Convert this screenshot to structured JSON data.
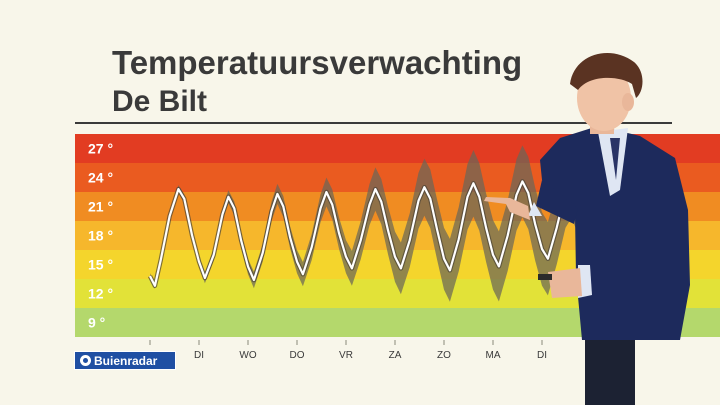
{
  "title": "Temperatuursverwachting",
  "subtitle": "De Bilt",
  "logo": {
    "text": "Buienradar"
  },
  "colors": {
    "band_27": "#e23c22",
    "band_24": "#ea5b20",
    "band_21": "#f08c22",
    "band_18": "#f6b72c",
    "band_15": "#f4d52c",
    "band_12": "#e2e238",
    "band_9": "#b4d86c",
    "line": "#ffffff",
    "uncertainty": "#6b6658",
    "title": "#3a3a3a",
    "logo": "#1f4fa3"
  },
  "chart_data": {
    "type": "line",
    "title": "Temperatuursverwachting",
    "subtitle": "De Bilt",
    "y_ticks": [
      "27 °",
      "24 °",
      "21 °",
      "18 °",
      "15 °",
      "12 °",
      "9 °"
    ],
    "y_tick_values": [
      27,
      24,
      21,
      18,
      15,
      12,
      9
    ],
    "ylim": [
      7.5,
      28.5
    ],
    "x_ticks": [
      "DI",
      "WO",
      "DO",
      "VR",
      "ZA",
      "ZO",
      "MA",
      "DI"
    ],
    "x_range_days": [
      0,
      8.8
    ],
    "grid": false,
    "series": [
      {
        "role": "forecast",
        "points": [
          [
            0.0,
            13.8
          ],
          [
            0.1,
            12.8
          ],
          [
            0.22,
            15.5
          ],
          [
            0.4,
            20.0
          ],
          [
            0.58,
            22.8
          ],
          [
            0.7,
            21.8
          ],
          [
            0.86,
            18.0
          ],
          [
            1.0,
            15.3
          ],
          [
            1.12,
            13.6
          ],
          [
            1.3,
            16.0
          ],
          [
            1.48,
            20.2
          ],
          [
            1.6,
            22.0
          ],
          [
            1.72,
            20.8
          ],
          [
            1.86,
            17.5
          ],
          [
            2.0,
            14.8
          ],
          [
            2.12,
            13.4
          ],
          [
            2.3,
            16.2
          ],
          [
            2.48,
            20.5
          ],
          [
            2.6,
            22.3
          ],
          [
            2.72,
            21.0
          ],
          [
            2.86,
            17.8
          ],
          [
            3.0,
            15.3
          ],
          [
            3.12,
            14.0
          ],
          [
            3.3,
            16.8
          ],
          [
            3.48,
            20.8
          ],
          [
            3.6,
            22.5
          ],
          [
            3.72,
            21.2
          ],
          [
            3.86,
            18.2
          ],
          [
            4.0,
            15.8
          ],
          [
            4.12,
            14.6
          ],
          [
            4.3,
            17.5
          ],
          [
            4.48,
            21.2
          ],
          [
            4.6,
            22.8
          ],
          [
            4.72,
            21.5
          ],
          [
            4.86,
            18.5
          ],
          [
            5.0,
            15.8
          ],
          [
            5.12,
            14.6
          ],
          [
            5.3,
            17.5
          ],
          [
            5.48,
            21.6
          ],
          [
            5.6,
            23.0
          ],
          [
            5.72,
            21.8
          ],
          [
            5.86,
            18.6
          ],
          [
            6.0,
            15.6
          ],
          [
            6.12,
            14.4
          ],
          [
            6.3,
            17.6
          ],
          [
            6.48,
            22.0
          ],
          [
            6.6,
            23.4
          ],
          [
            6.72,
            22.0
          ],
          [
            6.86,
            18.8
          ],
          [
            7.0,
            16.0
          ],
          [
            7.12,
            14.8
          ],
          [
            7.3,
            18.0
          ],
          [
            7.48,
            22.2
          ],
          [
            7.6,
            23.6
          ],
          [
            7.72,
            22.4
          ],
          [
            7.86,
            19.2
          ],
          [
            8.0,
            16.6
          ],
          [
            8.12,
            15.6
          ],
          [
            8.3,
            18.8
          ],
          [
            8.48,
            22.6
          ],
          [
            8.6,
            23.6
          ],
          [
            8.72,
            22.2
          ],
          [
            8.8,
            20.6
          ]
        ]
      },
      {
        "role": "uncertainty-band",
        "spread": [
          [
            0.0,
            0.3
          ],
          [
            1.0,
            0.5
          ],
          [
            2.0,
            0.8
          ],
          [
            3.0,
            1.2
          ],
          [
            4.0,
            1.7
          ],
          [
            5.0,
            2.6
          ],
          [
            6.0,
            3.2
          ],
          [
            7.0,
            3.6
          ],
          [
            8.0,
            3.8
          ],
          [
            8.8,
            3.8
          ]
        ]
      }
    ]
  }
}
